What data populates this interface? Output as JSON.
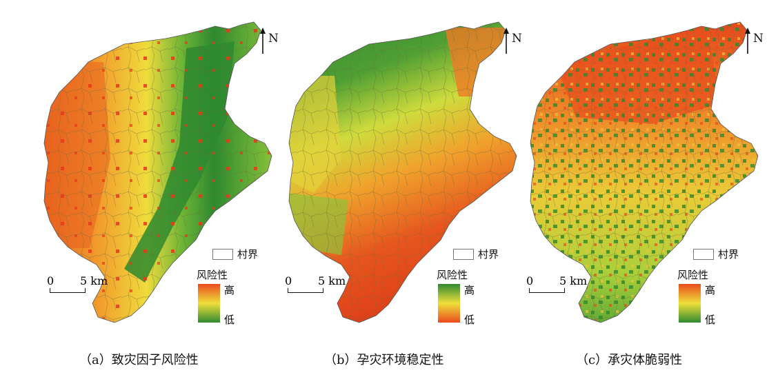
{
  "map": {
    "north_label": "N",
    "village_legend": "村界",
    "risk_title": "风险性",
    "high": "高",
    "low": "低",
    "scale_zero": "0",
    "scale_end": "5 km"
  },
  "captions": [
    "（a）致灾因子风险性",
    "（b）孕灾环境稳定性",
    "（c）承灾体脆弱性"
  ],
  "colors": {
    "high": "#e84b1c",
    "mid_high": "#f4a12a",
    "mid": "#eedf3a",
    "mid_low": "#a8cf3a",
    "low": "#2f8a30"
  }
}
